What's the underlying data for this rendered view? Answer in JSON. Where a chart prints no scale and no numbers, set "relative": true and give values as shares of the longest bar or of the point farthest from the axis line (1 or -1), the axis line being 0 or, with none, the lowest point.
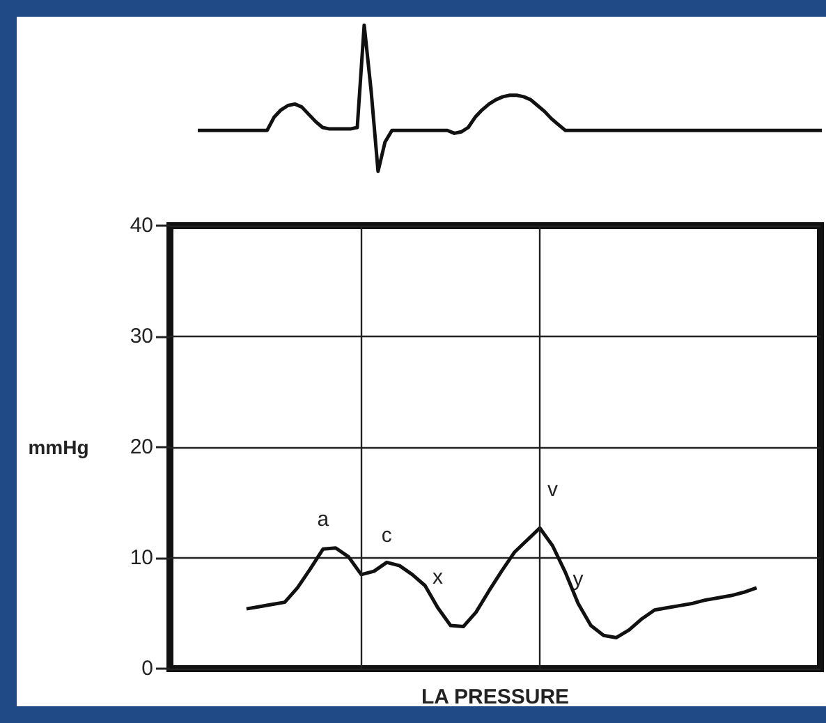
{
  "chart_data": [
    {
      "type": "line",
      "relative": true,
      "color": "#111111",
      "categories": [
        null,
        null,
        null,
        null,
        null,
        null,
        null,
        null,
        null,
        null,
        null,
        null,
        null,
        null,
        null,
        null,
        null,
        null,
        null,
        null,
        null,
        null,
        null,
        null,
        null,
        null,
        null,
        null,
        null,
        null,
        null,
        null,
        null,
        null,
        null,
        null,
        null,
        null,
        null,
        null,
        null,
        null,
        null,
        null,
        null,
        null,
        null,
        null,
        null,
        null,
        null,
        null,
        null,
        null,
        null,
        null,
        null,
        null,
        null,
        null,
        null,
        null,
        null,
        null,
        null,
        null,
        null,
        null,
        null,
        null,
        null,
        null,
        null,
        null,
        null,
        null,
        null,
        null,
        null,
        null,
        null,
        null,
        null,
        null,
        null,
        null,
        null,
        null,
        null,
        null,
        null
      ],
      "values": [
        0.28,
        0.28,
        0.28,
        0.28,
        0.28,
        0.28,
        0.28,
        0.28,
        0.28,
        0.28,
        0.28,
        0.37,
        0.42,
        0.45,
        0.46,
        0.44,
        0.39,
        0.34,
        0.3,
        0.29,
        0.29,
        0.29,
        0.29,
        0.3,
        1,
        0.55,
        0,
        0.2,
        0.28,
        0.28,
        0.28,
        0.28,
        0.28,
        0.28,
        0.28,
        0.28,
        0.28,
        0.26,
        0.27,
        0.3,
        0.37,
        0.42,
        0.46,
        0.49,
        0.51,
        0.52,
        0.52,
        0.51,
        0.49,
        0.45,
        0.41,
        0.36,
        0.32,
        0.28,
        0.28,
        0.28,
        0.28,
        0.28,
        0.28,
        0.28,
        0.28,
        0.28,
        0.28,
        0.28,
        0.28,
        0.28,
        0.28,
        0.28,
        0.28,
        0.28,
        0.28,
        0.28,
        0.28,
        0.28,
        0.28,
        0.28,
        0.28,
        0.28,
        0.28,
        0.28,
        0.28,
        0.28,
        0.28,
        0.28,
        0.28,
        0.28,
        0.28,
        0.28,
        0.28,
        0.28,
        0.28
      ]
    },
    {
      "type": "line",
      "color": "#111111",
      "xlabel": "LA PRESSURE",
      "ylabel": "mmHg",
      "categories": [
        null,
        null,
        null,
        null,
        null,
        null,
        null,
        null,
        null,
        null,
        null,
        null,
        null,
        null,
        null,
        null,
        null,
        null,
        null,
        null,
        null,
        null,
        null,
        null,
        null,
        null,
        null,
        null,
        null,
        null,
        null,
        null,
        null,
        null,
        null,
        null,
        null,
        null,
        null,
        null,
        null,
        null,
        null,
        null,
        null,
        null,
        null,
        null,
        null,
        null,
        null,
        null
      ],
      "values": [
        null,
        null,
        null,
        null,
        null,
        null,
        5.4,
        5.6,
        5.8,
        6.0,
        7.3,
        9.0,
        10.8,
        10.9,
        10.1,
        8.5,
        8.8,
        9.6,
        9.3,
        8.5,
        7.5,
        5.5,
        3.9,
        3.8,
        5.1,
        7.0,
        8.8,
        10.5,
        11.6,
        12.7,
        11.1,
        8.7,
        5.9,
        3.9,
        3.0,
        2.8,
        3.5,
        4.5,
        5.3,
        5.5,
        5.7,
        5.9,
        6.2,
        6.4,
        6.6,
        6.9,
        7.3,
        null,
        null,
        null,
        null,
        null
      ],
      "ylim": [
        0,
        40
      ],
      "yticks": [
        0,
        10,
        20,
        30,
        40
      ],
      "grid": "y",
      "annotations": [
        "a",
        "c",
        "x",
        "v",
        "y"
      ]
    }
  ]
}
